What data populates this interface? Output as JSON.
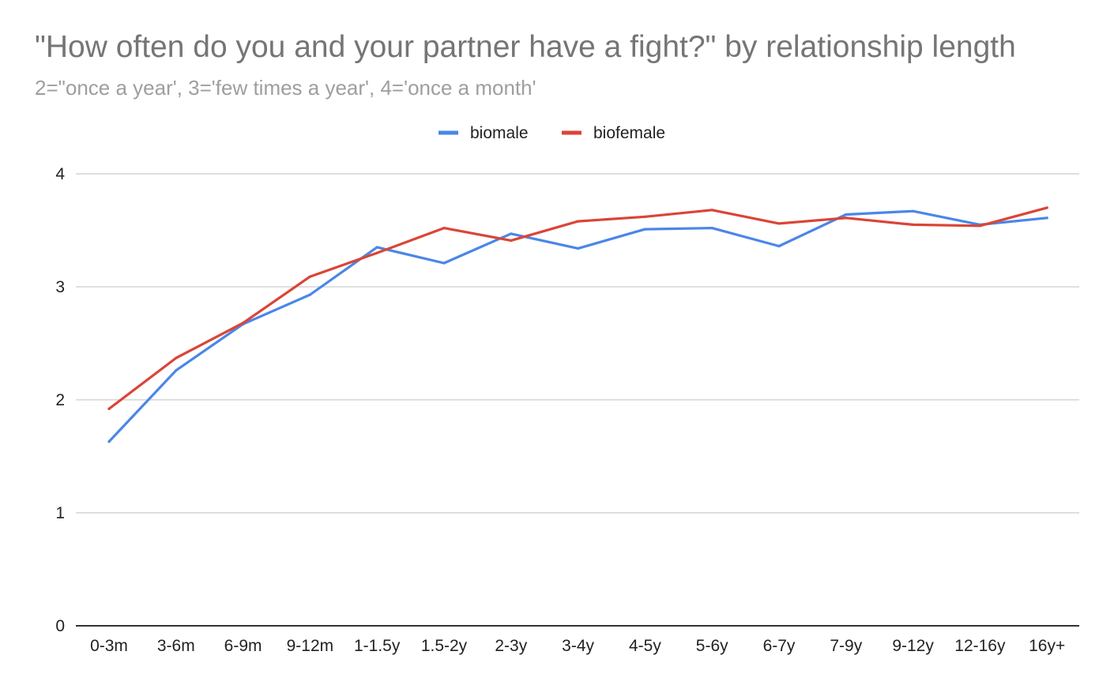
{
  "chart_data": {
    "type": "line",
    "title": "\"How often do you and your partner have a fight?\" by relationship length",
    "subtitle": "2=\"once a year', 3='few times a year', 4='once a month'",
    "xlabel": "",
    "ylabel": "",
    "ylim": [
      0,
      4
    ],
    "yticks": [
      "0",
      "1",
      "2",
      "3",
      "4"
    ],
    "grid": true,
    "legend_position": "top",
    "categories": [
      "0-3m",
      "3-6m",
      "6-9m",
      "9-12m",
      "1-1.5y",
      "1.5-2y",
      "2-3y",
      "3-4y",
      "4-5y",
      "5-6y",
      "6-7y",
      "7-9y",
      "9-12y",
      "12-16y",
      "16y+"
    ],
    "series": [
      {
        "name": "biomale",
        "color": "#4a86e8",
        "values": [
          1.63,
          2.26,
          2.67,
          2.93,
          3.35,
          3.21,
          3.47,
          3.34,
          3.51,
          3.52,
          3.36,
          3.64,
          3.67,
          3.55,
          3.61
        ]
      },
      {
        "name": "biofemale",
        "color": "#db4437",
        "values": [
          1.92,
          2.37,
          2.68,
          3.09,
          3.3,
          3.52,
          3.41,
          3.58,
          3.62,
          3.68,
          3.56,
          3.61,
          3.55,
          3.54,
          3.7
        ]
      }
    ]
  }
}
